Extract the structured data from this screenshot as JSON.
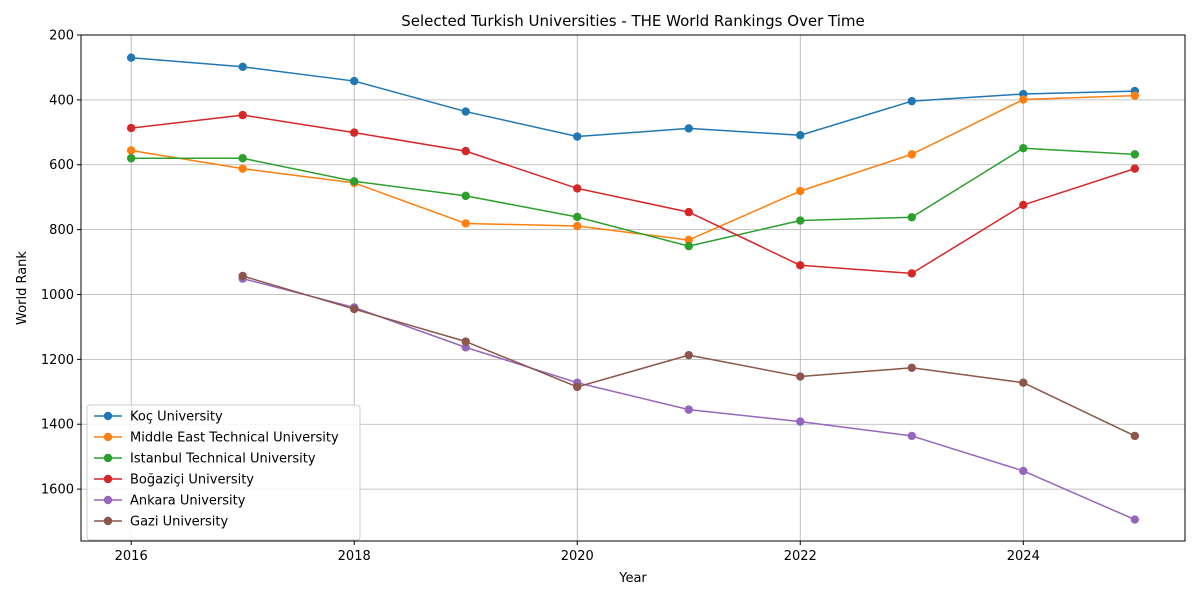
{
  "chart_data": {
    "type": "line",
    "title": "Selected Turkish Universities - THE World Rankings Over Time",
    "xlabel": "Year",
    "ylabel": "World Rank",
    "x_ticks": [
      2016,
      2018,
      2020,
      2022,
      2024
    ],
    "y_ticks": [
      200,
      400,
      600,
      800,
      1000,
      1200,
      1400,
      1600
    ],
    "xlim": [
      2015.55,
      2025.45
    ],
    "ylim": [
      1760,
      200
    ],
    "y_inverted": true,
    "grid": true,
    "legend_position": "lower-left",
    "series": [
      {
        "name": "Koç University",
        "color": "#1f77b4",
        "x": [
          2016,
          2017,
          2018,
          2019,
          2020,
          2021,
          2022,
          2023,
          2024,
          2025
        ],
        "y": [
          270,
          298,
          342,
          436,
          513,
          488,
          509,
          404,
          382,
          373
        ]
      },
      {
        "name": "Middle East Technical University",
        "color": "#ff7f0e",
        "x": [
          2016,
          2017,
          2018,
          2019,
          2020,
          2021,
          2022,
          2023,
          2024,
          2025
        ],
        "y": [
          556,
          612,
          656,
          781,
          789,
          832,
          681,
          568,
          399,
          387
        ]
      },
      {
        "name": "Istanbul Technical University",
        "color": "#2ca02c",
        "x": [
          2016,
          2017,
          2018,
          2019,
          2020,
          2021,
          2022,
          2023,
          2024,
          2025
        ],
        "y": [
          580,
          580,
          651,
          696,
          761,
          851,
          772,
          762,
          549,
          568
        ]
      },
      {
        "name": "Boğaziçi University",
        "color": "#d62728",
        "x": [
          2016,
          2017,
          2018,
          2019,
          2020,
          2021,
          2022,
          2023,
          2024,
          2025
        ],
        "y": [
          487,
          447,
          501,
          558,
          673,
          746,
          910,
          935,
          724,
          612
        ]
      },
      {
        "name": "Ankara University",
        "color": "#9467bd",
        "x": [
          2017,
          2018,
          2019,
          2020,
          2021,
          2022,
          2023,
          2024,
          2025
        ],
        "y": [
          951,
          1040,
          1163,
          1272,
          1355,
          1392,
          1436,
          1544,
          1694
        ]
      },
      {
        "name": "Gazi University",
        "color": "#8c564b",
        "x": [
          2017,
          2018,
          2019,
          2020,
          2021,
          2022,
          2023,
          2024,
          2025
        ],
        "y": [
          943,
          1045,
          1145,
          1285,
          1187,
          1253,
          1226,
          1272,
          1436
        ]
      }
    ]
  }
}
